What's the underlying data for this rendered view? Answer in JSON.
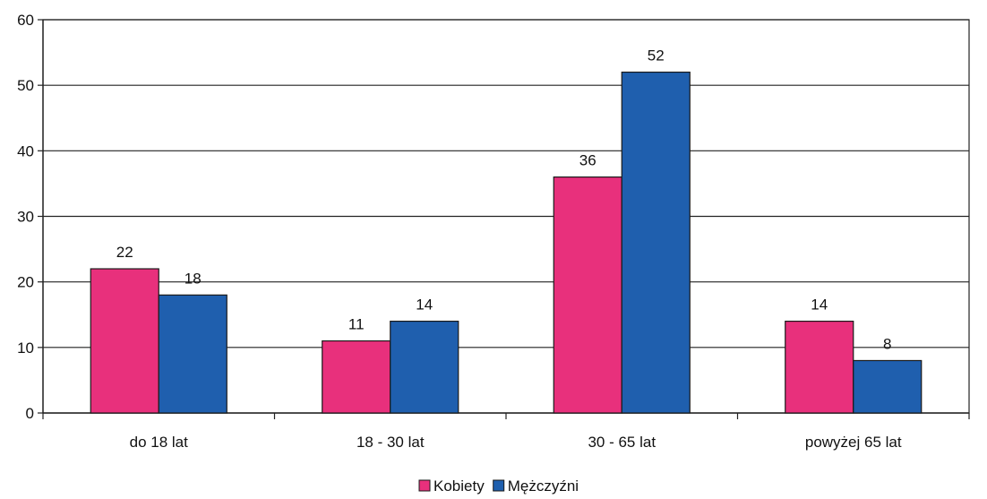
{
  "chart_data": {
    "type": "bar",
    "title": "",
    "xlabel": "",
    "ylabel": "",
    "categories": [
      "do 18 lat",
      "18 - 30 lat",
      "30 - 65 lat",
      "powyżej 65 lat"
    ],
    "series": [
      {
        "name": "Kobiety",
        "values": [
          22,
          11,
          36,
          14
        ],
        "color": "#e8307c"
      },
      {
        "name": "Mężczyźni",
        "values": [
          18,
          14,
          52,
          8
        ],
        "color": "#1f5fae"
      }
    ],
    "ylim": [
      0,
      60
    ],
    "yticks": [
      0,
      10,
      20,
      30,
      40,
      50,
      60
    ],
    "grid": true,
    "legend_position": "bottom-center",
    "data_labels": true
  },
  "legend": {
    "items": [
      {
        "label": "Kobiety",
        "color": "#e8307c"
      },
      {
        "label": "Mężczyźni",
        "color": "#1f5fae"
      }
    ]
  }
}
